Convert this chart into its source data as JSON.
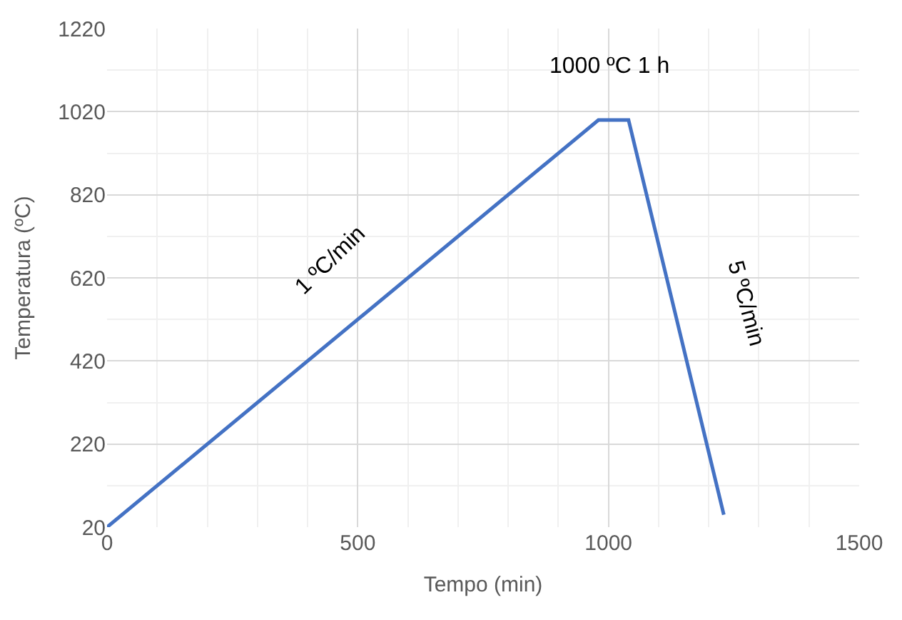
{
  "chart_data": {
    "type": "line",
    "xlabel": "Tempo (min)",
    "ylabel": "Temperatura (ºC)",
    "x": [
      0,
      980,
      1040,
      1230
    ],
    "series": [
      {
        "color": "#4472c4",
        "values": [
          20,
          1000,
          1000,
          50
        ]
      }
    ],
    "xlim": [
      0,
      1500
    ],
    "xticks": [
      0,
      500,
      1000,
      1500
    ],
    "ylim": [
      20,
      1220
    ],
    "yticks": [
      20,
      220,
      420,
      620,
      820,
      1020,
      1220
    ],
    "grid": true,
    "marker": "none",
    "line_style": "solid",
    "annotations": [
      "1000 ºC 1 h",
      "1 ºC/min",
      "5 ºC/min"
    ]
  }
}
